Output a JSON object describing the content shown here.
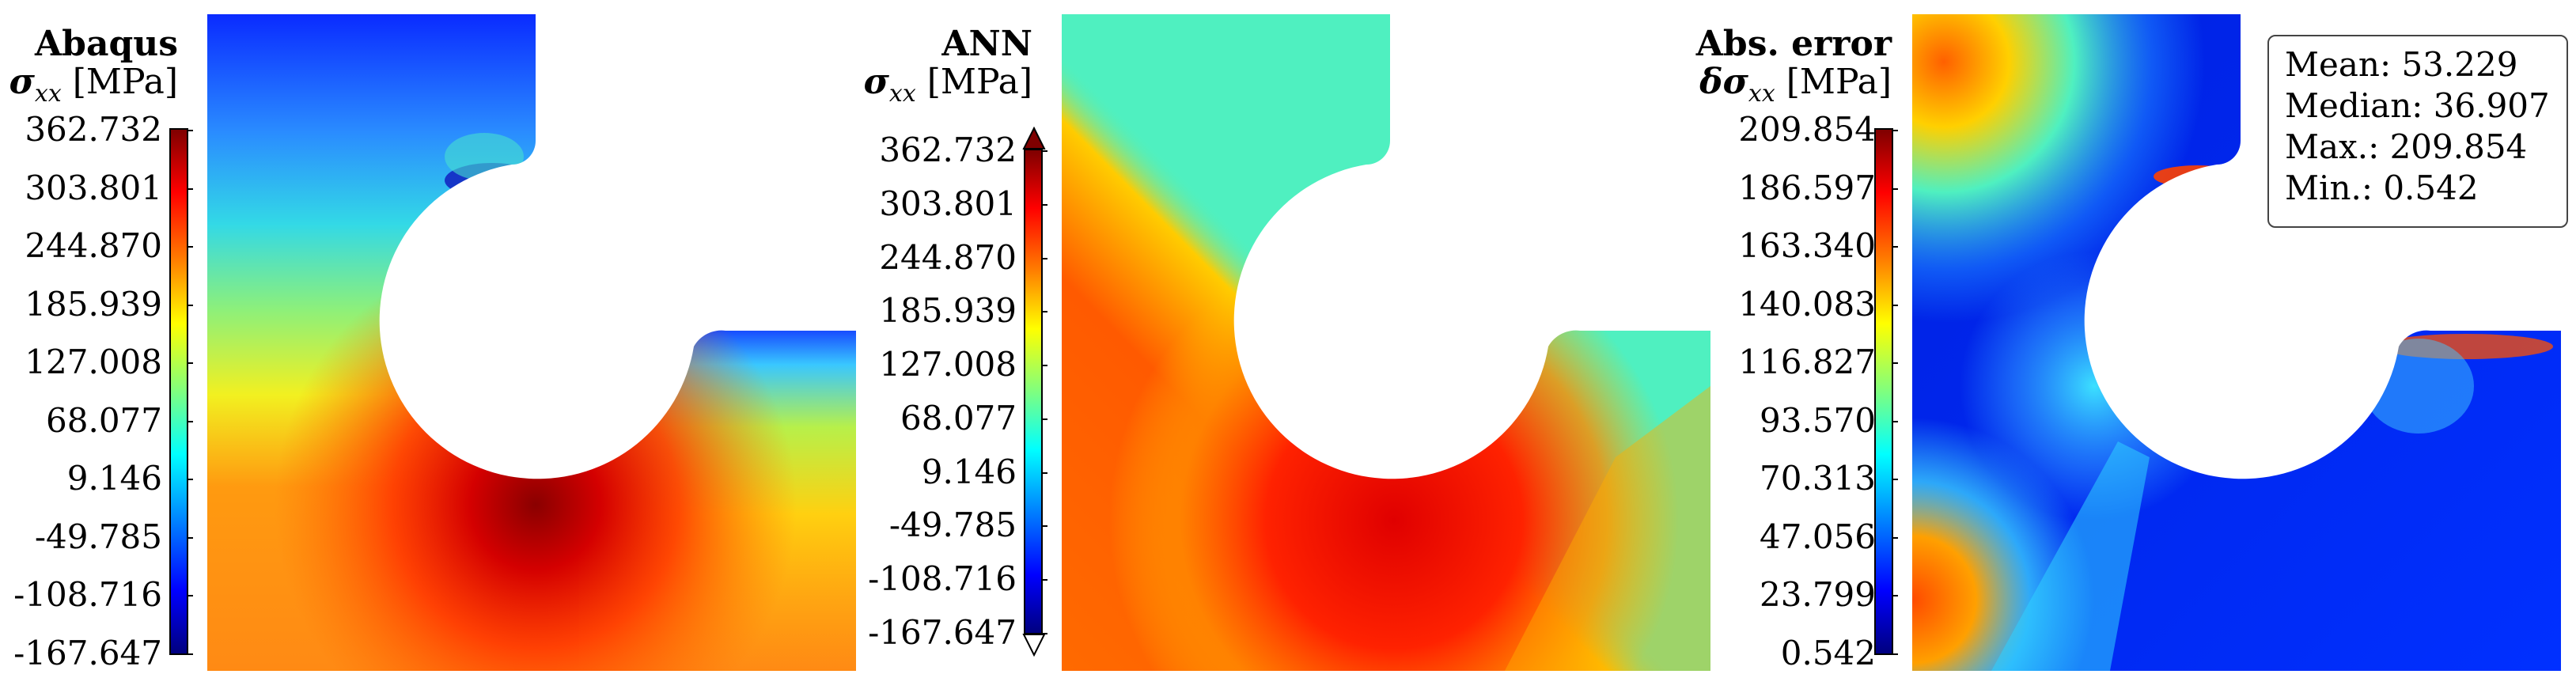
{
  "panels": {
    "abaqus": {
      "title": "Abaqus",
      "quantity_symbol": "σ",
      "quantity_sub": "xx",
      "unit": "[MPa]",
      "ticks": [
        "362.732",
        "303.801",
        "244.870",
        "185.939",
        "127.008",
        "68.077",
        "9.146",
        "-49.785",
        "-108.716",
        "-167.647"
      ]
    },
    "ann": {
      "title": "ANN",
      "quantity_symbol": "σ",
      "quantity_sub": "xx",
      "unit": "[MPa]",
      "ticks": [
        "362.732",
        "303.801",
        "244.870",
        "185.939",
        "127.008",
        "68.077",
        "9.146",
        "-49.785",
        "-108.716",
        "-167.647"
      ]
    },
    "error": {
      "title": "Abs. error",
      "quantity_symbol": "δσ",
      "quantity_sub": "xx",
      "unit": "[MPa]",
      "ticks": [
        "209.854",
        "186.597",
        "163.340",
        "140.083",
        "116.827",
        "93.570",
        "70.313",
        "47.056",
        "23.799",
        "0.542"
      ]
    }
  },
  "stats": {
    "mean": "Mean: 53.229",
    "median": "Median: 36.907",
    "max": "Max.: 209.854",
    "min": "Min.: 0.542"
  },
  "colormap": "jet"
}
